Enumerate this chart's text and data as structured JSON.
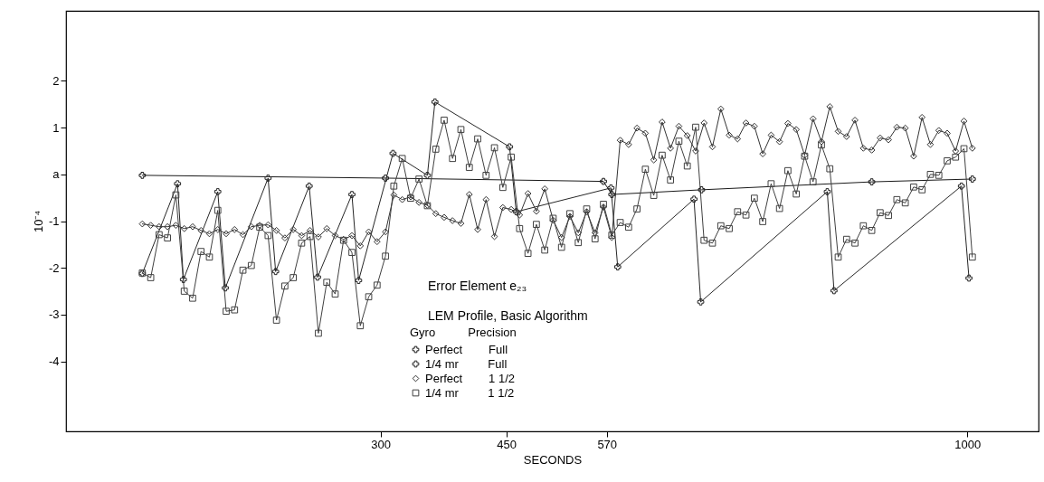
{
  "chart_data": {
    "type": "line",
    "title": "Error Element e₂₃",
    "xlabel": "SECONDS",
    "ylabel": "10⁻⁴",
    "legend_title": "Gyro          Precision",
    "annotations": [
      "LEM Profile, Basic Algorithm"
    ],
    "xlim": [
      -75,
      1085
    ],
    "xticks": [
      300,
      450,
      570,
      1000
    ],
    "ylim": [
      -5.5,
      3.5
    ],
    "yticks": [
      2,
      1,
      {
        "value": 0,
        "label": "a"
      },
      -1,
      -2,
      -3,
      -4
    ],
    "legend": "bottom",
    "series": [
      {
        "name": "Perfect        Full",
        "color": "#1a1a1a",
        "marker": "cross",
        "x": [
          16,
          306,
          566,
          576,
          683,
          886,
          1006
        ],
        "values": [
          -0.02,
          -0.08,
          -0.15,
          -0.43,
          -0.33,
          -0.16,
          -0.1
        ]
      },
      {
        "name": "1/4 mr         Full",
        "color": "#262626",
        "marker": "cross",
        "x": [
          16,
          58,
          65,
          106,
          115,
          166,
          175,
          215,
          225,
          266,
          274,
          315,
          356,
          365,
          454,
          462,
          575,
          583,
          674,
          682,
          833,
          841,
          993,
          1002
        ],
        "values": [
          -2.12,
          -0.2,
          -2.25,
          -0.37,
          -2.43,
          -0.08,
          -2.08,
          -0.25,
          -2.2,
          -0.43,
          -2.27,
          0.45,
          -0.02,
          1.55,
          0.59,
          -0.8,
          -0.29,
          -1.98,
          -0.53,
          -2.73,
          -0.37,
          -2.49,
          -0.25,
          -2.22
        ]
      },
      {
        "name": "Perfect        1 1/2",
        "color": "#333333",
        "marker": "diamond",
        "x": [
          16,
          26,
          36,
          46,
          56,
          66,
          76,
          86,
          96,
          106,
          116,
          126,
          136,
          146,
          156,
          166,
          176,
          186,
          196,
          206,
          216,
          226,
          236,
          246,
          256,
          266,
          276,
          286,
          296,
          306,
          316,
          326,
          336,
          346,
          356,
          366,
          376,
          386,
          396,
          406,
          416,
          426,
          436,
          446,
          456,
          466,
          476,
          486,
          496,
          506,
          516,
          526,
          536,
          546,
          556,
          566,
          576,
          586,
          596,
          606,
          616,
          626,
          636,
          646,
          656,
          666,
          676,
          686,
          696,
          706,
          716,
          726,
          736,
          746,
          756,
          766,
          776,
          786,
          796,
          806,
          816,
          826,
          836,
          846,
          856,
          866,
          876,
          886,
          896,
          906,
          916,
          926,
          936,
          946,
          956,
          966,
          976,
          986,
          996,
          1006
        ],
        "values": [
          -1.06,
          -1.09,
          -1.12,
          -1.12,
          -1.09,
          -1.16,
          -1.12,
          -1.2,
          -1.27,
          -1.18,
          -1.27,
          -1.18,
          -1.29,
          -1.12,
          -1.09,
          -1.08,
          -1.2,
          -1.36,
          -1.18,
          -1.31,
          -1.2,
          -1.34,
          -1.16,
          -1.31,
          -1.39,
          -1.31,
          -1.53,
          -1.23,
          -1.44,
          -1.23,
          -0.44,
          -0.54,
          -0.48,
          -0.6,
          -0.66,
          -0.84,
          -0.92,
          -0.99,
          -1.05,
          -0.43,
          -1.18,
          -0.54,
          -1.33,
          -0.71,
          -0.75,
          -0.87,
          -0.41,
          -0.79,
          -0.31,
          -0.98,
          -1.35,
          -0.9,
          -1.25,
          -0.8,
          -1.25,
          -0.7,
          -1.35,
          0.73,
          0.64,
          0.99,
          0.88,
          0.31,
          1.12,
          0.56,
          1.03,
          0.83,
          0.5,
          1.1,
          0.59,
          1.4,
          0.84,
          0.76,
          1.1,
          1.03,
          0.44,
          0.84,
          0.7,
          1.09,
          0.96,
          0.41,
          1.19,
          0.7,
          1.45,
          0.92,
          0.81,
          1.16,
          0.56,
          0.52,
          0.78,
          0.74,
          1.01,
          0.99,
          0.39,
          1.22,
          0.64,
          0.94,
          0.88,
          0.5,
          1.14,
          0.56
        ]
      },
      {
        "name": "1/4 mr         1 1/2",
        "color": "#404040",
        "marker": "square",
        "x": [
          16,
          26,
          36,
          46,
          56,
          66,
          76,
          86,
          96,
          106,
          116,
          126,
          136,
          146,
          156,
          166,
          176,
          186,
          196,
          206,
          216,
          226,
          236,
          246,
          256,
          266,
          276,
          286,
          296,
          306,
          316,
          326,
          336,
          346,
          356,
          366,
          376,
          386,
          396,
          406,
          416,
          426,
          436,
          446,
          456,
          466,
          476,
          486,
          496,
          506,
          516,
          526,
          536,
          546,
          556,
          566,
          576,
          586,
          596,
          606,
          616,
          626,
          636,
          646,
          656,
          666,
          676,
          686,
          696,
          706,
          716,
          726,
          736,
          746,
          756,
          766,
          776,
          786,
          796,
          806,
          816,
          826,
          836,
          846,
          856,
          866,
          876,
          886,
          896,
          906,
          916,
          926,
          936,
          946,
          956,
          966,
          976,
          986,
          996,
          1006
        ],
        "values": [
          -2.11,
          -2.21,
          -1.29,
          -1.36,
          -0.44,
          -2.5,
          -2.65,
          -1.65,
          -1.77,
          -0.77,
          -2.93,
          -2.9,
          -2.05,
          -1.95,
          -1.13,
          -1.31,
          -3.12,
          -2.39,
          -2.21,
          -1.47,
          -1.33,
          -3.4,
          -2.31,
          -2.56,
          -1.41,
          -1.67,
          -3.24,
          -2.62,
          -2.37,
          -1.75,
          -0.25,
          0.34,
          -0.51,
          -0.1,
          -0.67,
          0.54,
          1.16,
          0.34,
          0.96,
          0.15,
          0.76,
          -0.02,
          0.57,
          -0.28,
          0.37,
          -1.16,
          -1.69,
          -1.07,
          -1.62,
          -0.94,
          -1.56,
          -0.84,
          -1.46,
          -0.74,
          -1.38,
          -0.64,
          -1.3,
          -1.03,
          -1.13,
          -0.74,
          0.11,
          -0.45,
          0.41,
          -0.12,
          0.71,
          0.18,
          1.01,
          -1.41,
          -1.47,
          -1.1,
          -1.16,
          -0.8,
          -0.87,
          -0.51,
          -1.01,
          -0.2,
          -0.73,
          0.08,
          -0.42,
          0.39,
          -0.16,
          0.63,
          0.12,
          -1.77,
          -1.39,
          -1.47,
          -1.1,
          -1.2,
          -0.82,
          -0.88,
          -0.54,
          -0.61,
          -0.27,
          -0.33,
          0.0,
          -0.02,
          0.29,
          0.37,
          0.55,
          -1.77
        ]
      }
    ]
  }
}
